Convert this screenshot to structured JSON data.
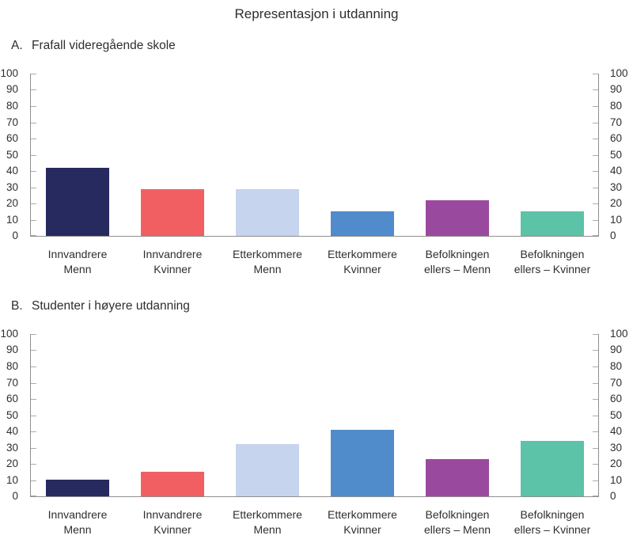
{
  "title": "Representasjon i utdanning",
  "axis_color": "#8f8f8f",
  "tick_color": "#ababab",
  "text_color": "#2e2e2e",
  "chart_data": [
    {
      "type": "bar",
      "panel_letter": "A.",
      "title": "Frafall videregående skole",
      "categories": [
        "Innvandrere\nMenn",
        "Innvandrere\nKvinner",
        "Etterkommere\nMenn",
        "Etterkommere\nKvinner",
        "Befolkningen\nellers – Menn",
        "Befolkningen\nellers – Kvinner"
      ],
      "values": [
        42,
        29,
        29,
        15,
        22,
        15
      ],
      "bar_colors": [
        "#272A5E",
        "#F25F63",
        "#C6D4ED",
        "#508BCB",
        "#9A4A9E",
        "#5CC3A8"
      ],
      "xlabel": "",
      "ylabel": "",
      "ylim": [
        0,
        100
      ],
      "ytick_step": 10,
      "grid": false,
      "y_axis_sides": "both",
      "legend": "none"
    },
    {
      "type": "bar",
      "panel_letter": "B.",
      "title": "Studenter i høyere utdanning",
      "categories": [
        "Innvandrere\nMenn",
        "Innvandrere\nKvinner",
        "Etterkommere\nMenn",
        "Etterkommere\nKvinner",
        "Befolkningen\nellers –  Menn",
        "Befolkningen\nellers – Kvinner"
      ],
      "values": [
        10,
        15,
        32,
        41,
        23,
        34
      ],
      "bar_colors": [
        "#272A5E",
        "#F25F63",
        "#C6D4ED",
        "#508BCB",
        "#9A4A9E",
        "#5CC3A8"
      ],
      "xlabel": "",
      "ylabel": "",
      "ylim": [
        0,
        100
      ],
      "ytick_step": 10,
      "grid": false,
      "y_axis_sides": "both",
      "legend": "none"
    }
  ]
}
